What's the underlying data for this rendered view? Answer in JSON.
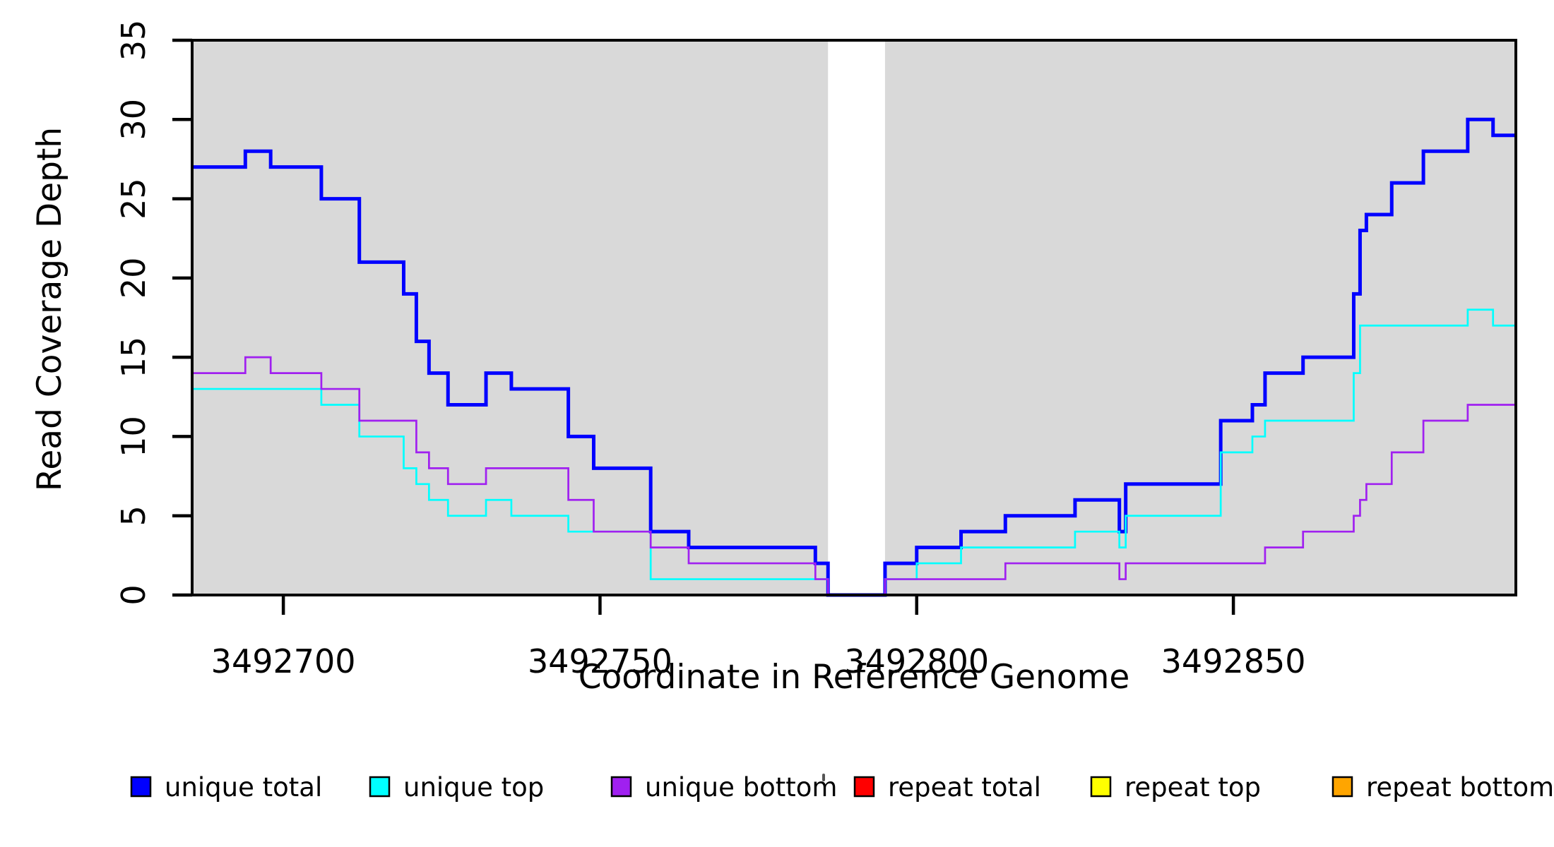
{
  "chart_data": {
    "type": "line",
    "step": true,
    "title": "",
    "xlabel": "Coordinate in Reference Genome",
    "ylabel": "Read Coverage Depth",
    "xlim": [
      3492685.6,
      3492894.6
    ],
    "ylim": [
      0,
      35
    ],
    "x_ticks": [
      "3492700",
      "3492750",
      "3492800",
      "3492850"
    ],
    "x_tick_values": [
      3492700,
      3492750,
      3492800,
      3492850
    ],
    "y_ticks": [
      "0",
      "5",
      "10",
      "15",
      "20",
      "25",
      "30",
      "35"
    ],
    "y_tick_values": [
      0,
      5,
      10,
      15,
      20,
      25,
      30,
      35
    ],
    "plot_background": "#d9d9d9",
    "gap_region": [
      3492786,
      3492795
    ],
    "legend_position": "bottom",
    "grid": false,
    "draw_order": [
      "repeat total",
      "repeat top",
      "repeat bottom",
      "unique total",
      "unique top",
      "unique bottom"
    ],
    "series": [
      {
        "name": "unique total",
        "color": "#0000ff",
        "line_width": 5,
        "steps": [
          [
            3492686,
            27
          ],
          [
            3492694,
            28
          ],
          [
            3492698,
            27
          ],
          [
            3492706,
            25
          ],
          [
            3492712,
            21
          ],
          [
            3492719,
            19
          ],
          [
            3492721,
            16
          ],
          [
            3492723,
            14
          ],
          [
            3492726,
            12
          ],
          [
            3492732,
            14
          ],
          [
            3492736,
            13
          ],
          [
            3492745,
            10
          ],
          [
            3492749,
            8
          ],
          [
            3492758,
            4
          ],
          [
            3492764,
            3
          ],
          [
            3492784,
            2
          ],
          [
            3492786,
            0
          ],
          [
            3492795,
            2
          ],
          [
            3492800,
            3
          ],
          [
            3492807,
            4
          ],
          [
            3492814,
            5
          ],
          [
            3492825,
            6
          ],
          [
            3492832,
            4
          ],
          [
            3492833,
            7
          ],
          [
            3492848,
            11
          ],
          [
            3492853,
            12
          ],
          [
            3492855,
            14
          ],
          [
            3492861,
            15
          ],
          [
            3492869,
            19
          ],
          [
            3492870,
            23
          ],
          [
            3492871,
            24
          ],
          [
            3492875,
            26
          ],
          [
            3492880,
            28
          ],
          [
            3492887,
            30
          ],
          [
            3492891,
            29
          ]
        ]
      },
      {
        "name": "unique top",
        "color": "#00ffff",
        "line_width": 2.7,
        "steps": [
          [
            3492686,
            13
          ],
          [
            3492706,
            12
          ],
          [
            3492712,
            10
          ],
          [
            3492719,
            8
          ],
          [
            3492721,
            7
          ],
          [
            3492723,
            6
          ],
          [
            3492726,
            5
          ],
          [
            3492732,
            6
          ],
          [
            3492736,
            5
          ],
          [
            3492745,
            4
          ],
          [
            3492758,
            1
          ],
          [
            3492786,
            0
          ],
          [
            3492795,
            1
          ],
          [
            3492800,
            2
          ],
          [
            3492807,
            3
          ],
          [
            3492825,
            4
          ],
          [
            3492832,
            3
          ],
          [
            3492833,
            5
          ],
          [
            3492848,
            9
          ],
          [
            3492853,
            10
          ],
          [
            3492855,
            11
          ],
          [
            3492869,
            14
          ],
          [
            3492870,
            17
          ],
          [
            3492887,
            18
          ],
          [
            3492891,
            17
          ]
        ]
      },
      {
        "name": "unique bottom",
        "color": "#a020f0",
        "line_width": 2.7,
        "steps": [
          [
            3492686,
            14
          ],
          [
            3492694,
            15
          ],
          [
            3492698,
            14
          ],
          [
            3492706,
            13
          ],
          [
            3492712,
            11
          ],
          [
            3492721,
            9
          ],
          [
            3492723,
            8
          ],
          [
            3492726,
            7
          ],
          [
            3492732,
            8
          ],
          [
            3492745,
            6
          ],
          [
            3492749,
            4
          ],
          [
            3492758,
            3
          ],
          [
            3492764,
            2
          ],
          [
            3492784,
            1
          ],
          [
            3492786,
            0
          ],
          [
            3492795,
            1
          ],
          [
            3492814,
            2
          ],
          [
            3492832,
            1
          ],
          [
            3492833,
            2
          ],
          [
            3492855,
            3
          ],
          [
            3492861,
            4
          ],
          [
            3492869,
            5
          ],
          [
            3492870,
            6
          ],
          [
            3492871,
            7
          ],
          [
            3492875,
            9
          ],
          [
            3492880,
            11
          ],
          [
            3492887,
            12
          ]
        ]
      },
      {
        "name": "repeat total",
        "color": "#ff0000",
        "line_width": 2.7,
        "steps": [
          [
            3492686,
            0
          ]
        ]
      },
      {
        "name": "repeat top",
        "color": "#ffff00",
        "line_width": 2.7,
        "steps": [
          [
            3492686,
            0
          ]
        ]
      },
      {
        "name": "repeat bottom",
        "color": "#ffa500",
        "line_width": 3.5,
        "steps": [
          [
            3492686,
            0
          ]
        ]
      }
    ]
  }
}
